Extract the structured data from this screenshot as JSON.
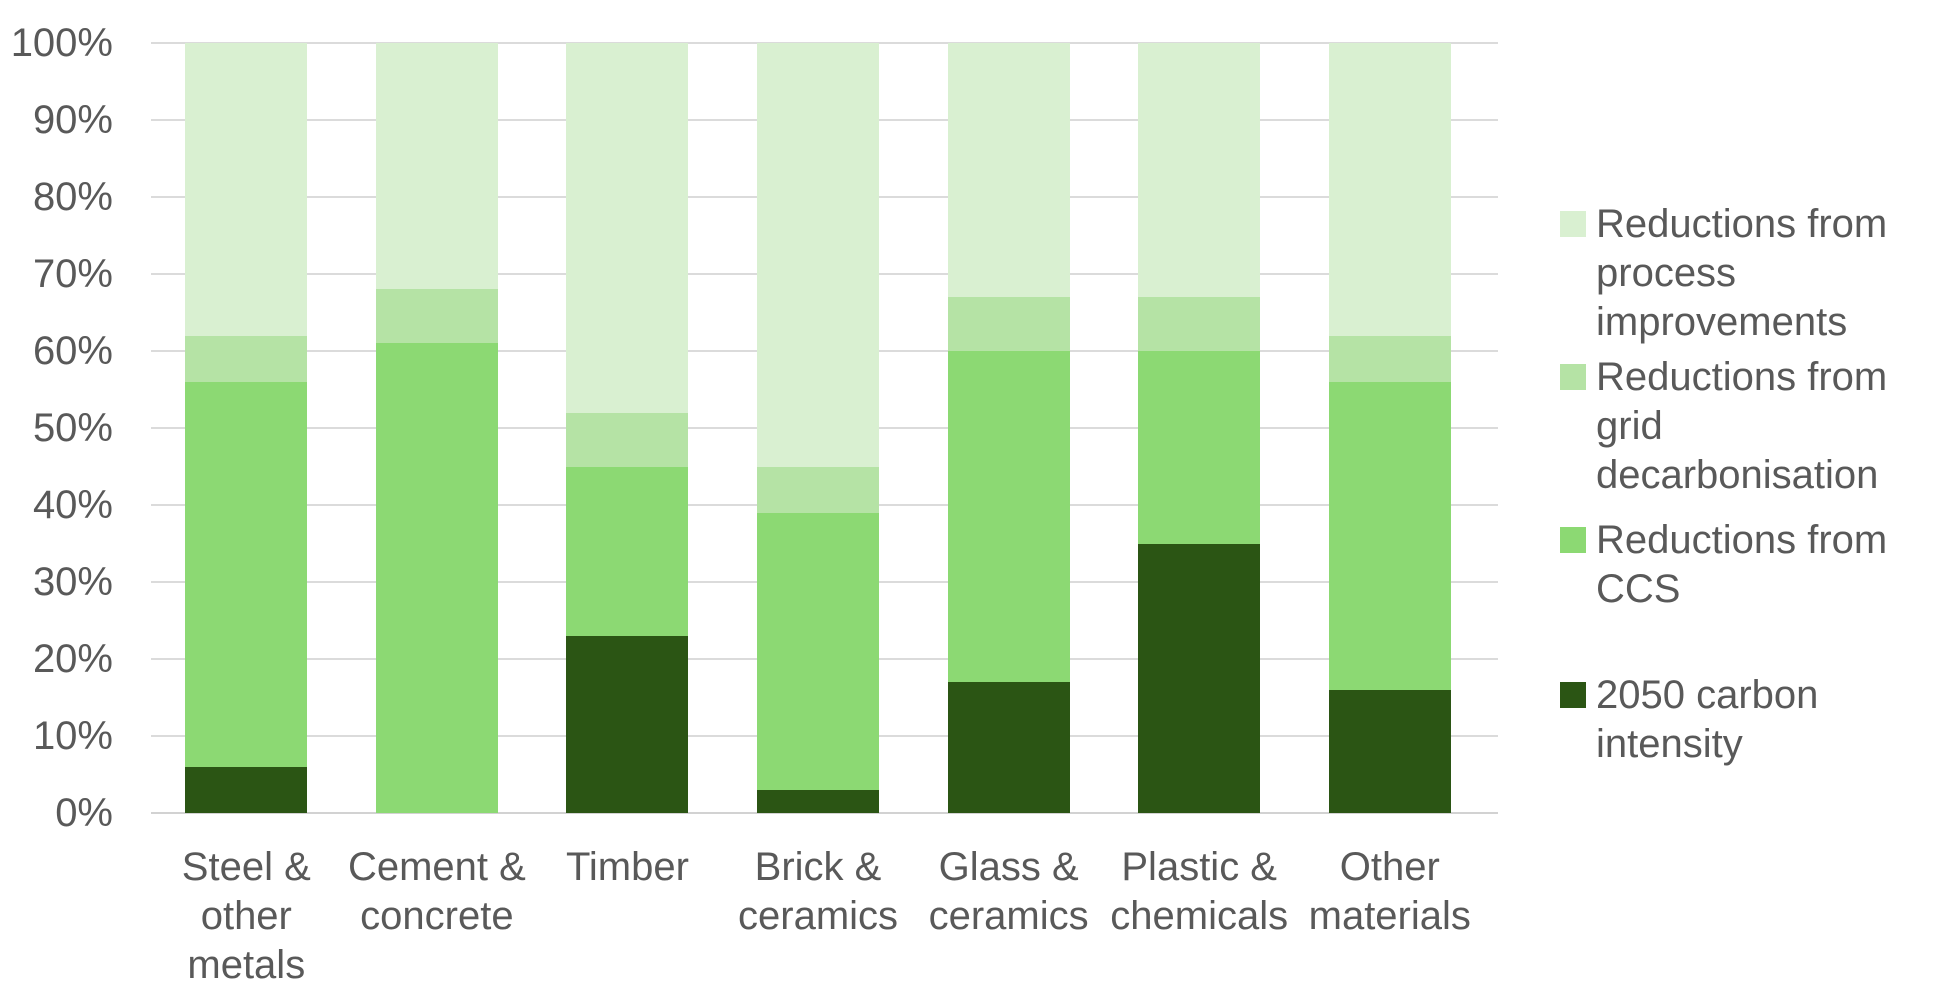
{
  "chart_data": {
    "type": "bar",
    "stacked": true,
    "orientation": "vertical",
    "title": "",
    "xlabel": "",
    "ylabel": "",
    "categories": [
      "Steel & other metals",
      "Cement & concrete",
      "Timber",
      "Brick & ceramics",
      "Glass & ceramics",
      "Plastic & chemicals",
      "Other materials"
    ],
    "series": [
      {
        "name": "2050 carbon intensity",
        "color": "#2B5514",
        "values": [
          6,
          0,
          23,
          3,
          17,
          35,
          16
        ]
      },
      {
        "name": "Reductions from CCS",
        "color": "#8CD973",
        "values": [
          50,
          61,
          22,
          36,
          43,
          25,
          40
        ]
      },
      {
        "name": "Reductions from grid decarbonisation",
        "color": "#B5E3A5",
        "values": [
          6,
          7,
          7,
          6,
          7,
          7,
          6
        ]
      },
      {
        "name": "Reductions from process improvements",
        "color": "#D9F0D1",
        "values": [
          38,
          32,
          48,
          55,
          33,
          33,
          38
        ]
      }
    ],
    "segment_tops_percent": {
      "Steel & other metals": [
        6,
        56,
        62,
        100
      ],
      "Cement & concrete": [
        0,
        61,
        68,
        100
      ],
      "Timber": [
        23,
        45,
        52,
        100
      ],
      "Brick & ceramics": [
        3,
        39,
        45,
        100
      ],
      "Glass & ceramics": [
        17,
        60,
        67,
        100
      ],
      "Plastic & chemicals": [
        35,
        60,
        67,
        100
      ],
      "Other materials": [
        16,
        56,
        62,
        100
      ]
    },
    "y_axis": {
      "min": 0,
      "max": 100,
      "step": 10,
      "format": "percent",
      "ticks": [
        "100%",
        "90%",
        "80%",
        "70%",
        "60%",
        "50%",
        "40%",
        "30%",
        "20%",
        "10%",
        "0%"
      ]
    },
    "grid": true,
    "legend": {
      "position": "right",
      "entries": [
        {
          "label": "Reductions from process improvements",
          "color": "#D9F0D1"
        },
        {
          "label": "Reductions from grid decarbonisation",
          "color": "#B5E3A5"
        },
        {
          "label": "Reductions from CCS",
          "color": "#8CD973"
        },
        {
          "label": "2050 carbon intensity",
          "color": "#2B5514"
        }
      ]
    }
  },
  "colors": {
    "text": "#595959",
    "gridline": "#DBDBDB",
    "axis_line": "#D2D2D2",
    "background": "#FFFFFF"
  }
}
